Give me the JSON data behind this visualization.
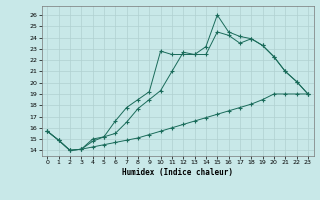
{
  "bg_color": "#c8e8e8",
  "grid_color": "#b0d0d0",
  "line_color": "#1a6b5a",
  "xlabel": "Humidex (Indice chaleur)",
  "xlim": [
    -0.5,
    23.5
  ],
  "ylim": [
    13.5,
    26.8
  ],
  "xticks": [
    0,
    1,
    2,
    3,
    4,
    5,
    6,
    7,
    8,
    9,
    10,
    11,
    12,
    13,
    14,
    15,
    16,
    17,
    18,
    19,
    20,
    21,
    22,
    23
  ],
  "yticks": [
    14,
    15,
    16,
    17,
    18,
    19,
    20,
    21,
    22,
    23,
    24,
    25,
    26
  ],
  "line_top_x": [
    0,
    1,
    2,
    3,
    4,
    5,
    6,
    7,
    8,
    9,
    10,
    11,
    12,
    13,
    14,
    15,
    16,
    17,
    18,
    19,
    20,
    21,
    22,
    23
  ],
  "line_top_y": [
    15.7,
    14.9,
    14.0,
    14.1,
    14.8,
    15.2,
    16.6,
    17.8,
    18.5,
    19.2,
    22.8,
    22.5,
    22.5,
    22.5,
    23.2,
    26.0,
    24.5,
    24.1,
    23.9,
    23.3,
    22.3,
    21.0,
    20.1,
    19.0
  ],
  "line_mid_x": [
    0,
    1,
    2,
    3,
    4,
    5,
    6,
    7,
    8,
    9,
    10,
    11,
    12,
    13,
    14,
    15,
    16,
    17,
    18,
    19,
    20,
    21,
    22,
    23
  ],
  "line_mid_y": [
    15.7,
    14.9,
    14.0,
    14.1,
    15.0,
    15.2,
    15.5,
    16.5,
    17.7,
    18.5,
    19.3,
    21.0,
    22.7,
    22.5,
    22.5,
    24.5,
    24.2,
    23.5,
    23.9,
    23.3,
    22.3,
    21.0,
    20.1,
    19.0
  ],
  "line_bot_x": [
    0,
    1,
    2,
    3,
    4,
    5,
    6,
    7,
    8,
    9,
    10,
    11,
    12,
    13,
    14,
    15,
    16,
    17,
    18,
    19,
    20,
    21,
    22,
    23
  ],
  "line_bot_y": [
    15.7,
    14.9,
    14.0,
    14.1,
    14.3,
    14.5,
    14.7,
    14.9,
    15.1,
    15.4,
    15.7,
    16.0,
    16.3,
    16.6,
    16.9,
    17.2,
    17.5,
    17.8,
    18.1,
    18.5,
    19.0,
    19.0,
    19.0,
    19.0
  ]
}
